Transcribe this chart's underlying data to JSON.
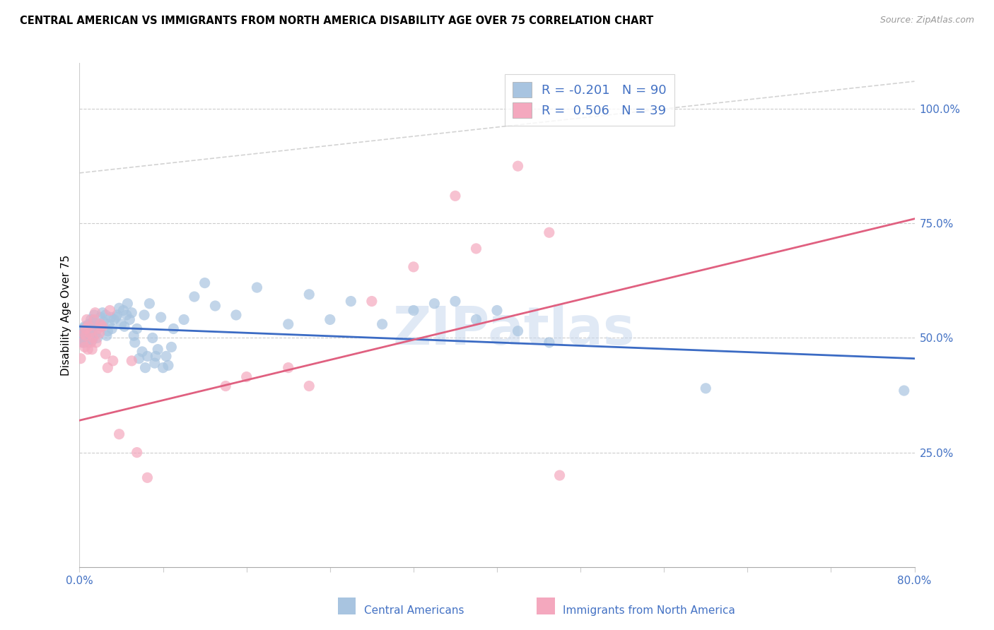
{
  "title": "CENTRAL AMERICAN VS IMMIGRANTS FROM NORTH AMERICA DISABILITY AGE OVER 75 CORRELATION CHART",
  "source": "Source: ZipAtlas.com",
  "ylabel": "Disability Age Over 75",
  "right_yticks": [
    "100.0%",
    "75.0%",
    "50.0%",
    "25.0%"
  ],
  "right_ytick_vals": [
    1.0,
    0.75,
    0.5,
    0.25
  ],
  "legend_label1": "Central Americans",
  "legend_label2": "Immigrants from North America",
  "R1": -0.201,
  "N1": 90,
  "R2": 0.506,
  "N2": 39,
  "color_blue": "#A8C4E0",
  "color_pink": "#F4A8BE",
  "color_line_blue": "#3B6BC4",
  "color_line_pink": "#E06080",
  "xlim": [
    0.0,
    0.8
  ],
  "ylim": [
    0.0,
    1.1
  ],
  "watermark": "ZIPatlas",
  "blue_x": [
    0.001,
    0.002,
    0.003,
    0.003,
    0.004,
    0.004,
    0.004,
    0.005,
    0.005,
    0.005,
    0.006,
    0.006,
    0.006,
    0.007,
    0.007,
    0.008,
    0.008,
    0.009,
    0.009,
    0.01,
    0.01,
    0.011,
    0.012,
    0.012,
    0.013,
    0.014,
    0.015,
    0.016,
    0.017,
    0.018,
    0.02,
    0.021,
    0.022,
    0.023,
    0.025,
    0.026,
    0.027,
    0.028,
    0.03,
    0.031,
    0.033,
    0.035,
    0.036,
    0.038,
    0.04,
    0.042,
    0.043,
    0.045,
    0.046,
    0.048,
    0.05,
    0.052,
    0.053,
    0.055,
    0.057,
    0.06,
    0.062,
    0.063,
    0.065,
    0.067,
    0.07,
    0.072,
    0.073,
    0.075,
    0.078,
    0.08,
    0.083,
    0.085,
    0.088,
    0.09,
    0.1,
    0.11,
    0.12,
    0.13,
    0.15,
    0.17,
    0.2,
    0.22,
    0.24,
    0.26,
    0.29,
    0.32,
    0.34,
    0.36,
    0.38,
    0.4,
    0.42,
    0.45,
    0.6,
    0.79
  ],
  "blue_y": [
    0.51,
    0.51,
    0.49,
    0.52,
    0.5,
    0.515,
    0.505,
    0.49,
    0.525,
    0.5,
    0.495,
    0.51,
    0.5,
    0.525,
    0.495,
    0.49,
    0.515,
    0.53,
    0.495,
    0.505,
    0.52,
    0.54,
    0.515,
    0.495,
    0.535,
    0.55,
    0.525,
    0.51,
    0.5,
    0.53,
    0.545,
    0.525,
    0.555,
    0.535,
    0.55,
    0.505,
    0.515,
    0.53,
    0.545,
    0.52,
    0.54,
    0.545,
    0.55,
    0.565,
    0.53,
    0.56,
    0.525,
    0.55,
    0.575,
    0.54,
    0.555,
    0.505,
    0.49,
    0.52,
    0.455,
    0.47,
    0.55,
    0.435,
    0.46,
    0.575,
    0.5,
    0.445,
    0.46,
    0.475,
    0.545,
    0.435,
    0.46,
    0.44,
    0.48,
    0.52,
    0.54,
    0.59,
    0.62,
    0.57,
    0.55,
    0.61,
    0.53,
    0.595,
    0.54,
    0.58,
    0.53,
    0.56,
    0.575,
    0.58,
    0.54,
    0.56,
    0.515,
    0.49,
    0.39,
    0.385
  ],
  "pink_x": [
    0.001,
    0.003,
    0.004,
    0.005,
    0.006,
    0.006,
    0.007,
    0.008,
    0.009,
    0.01,
    0.011,
    0.012,
    0.013,
    0.014,
    0.015,
    0.016,
    0.018,
    0.019,
    0.02,
    0.022,
    0.025,
    0.027,
    0.029,
    0.032,
    0.038,
    0.05,
    0.055,
    0.065,
    0.14,
    0.16,
    0.2,
    0.22,
    0.28,
    0.32,
    0.36,
    0.38,
    0.42,
    0.45,
    0.46
  ],
  "pink_y": [
    0.455,
    0.49,
    0.51,
    0.48,
    0.505,
    0.52,
    0.54,
    0.475,
    0.525,
    0.51,
    0.49,
    0.475,
    0.5,
    0.54,
    0.555,
    0.49,
    0.52,
    0.51,
    0.53,
    0.525,
    0.465,
    0.435,
    0.56,
    0.45,
    0.29,
    0.45,
    0.25,
    0.195,
    0.395,
    0.415,
    0.435,
    0.395,
    0.58,
    0.655,
    0.81,
    0.695,
    0.875,
    0.73,
    0.2
  ]
}
